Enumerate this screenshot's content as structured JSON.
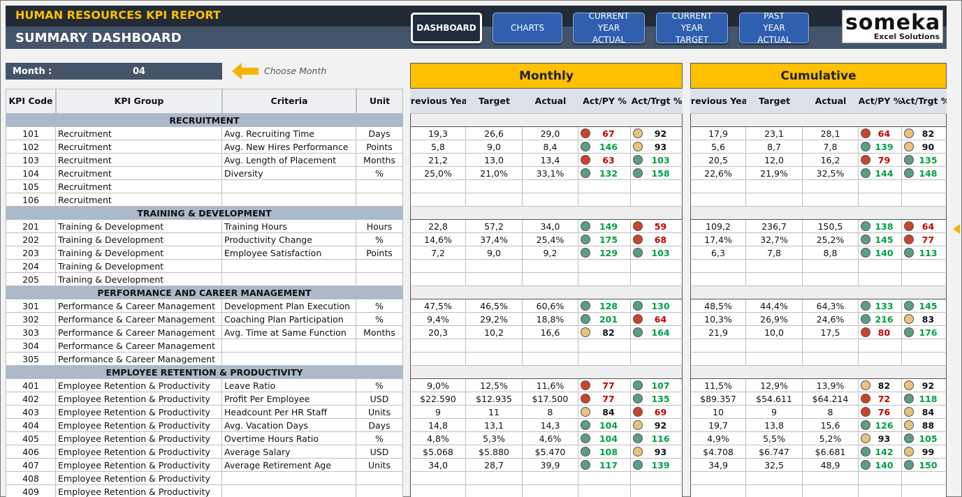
{
  "header": {
    "title": "HUMAN RESOURCES KPI REPORT",
    "subtitle": "SUMMARY DASHBOARD"
  },
  "nav": [
    "DASHBOARD",
    "CHARTS",
    "CURRENT YEAR ACTUAL",
    "CURRENT YEAR TARGET",
    "PAST YEAR ACTUAL"
  ],
  "logo": {
    "name": "someka",
    "tagline": "Excel Solutions"
  },
  "month": {
    "label": "Month :",
    "value": "04",
    "hint": "Choose Month"
  },
  "table": {
    "columns": [
      "KPI Code",
      "KPI Group",
      "Criteria",
      "Unit"
    ],
    "monthly": {
      "title": "Monthly",
      "columns": [
        "Previous Year",
        "Target",
        "Actual",
        "Act/PY %",
        "Act/Trgt %"
      ]
    },
    "cumulative": {
      "title": "Cumulative",
      "columns": [
        "Previous Year",
        "Target",
        "Actual",
        "Act/PY %",
        "Act/Trgt %"
      ]
    },
    "sections": [
      {
        "title": "RECRUITMENT",
        "rows": [
          {
            "code": "101",
            "group": "Recruitment",
            "criteria": "Avg. Recruiting Time",
            "unit": "Days",
            "monthly": [
              "19,3",
              "26,6",
              "29,0",
              {
                "value": "67",
                "status": "red"
              },
              {
                "value": "92",
                "status": "amber"
              }
            ],
            "cumulative": [
              "17,9",
              "23,1",
              "28,1",
              {
                "value": "64",
                "status": "red"
              },
              {
                "value": "82",
                "status": "amber"
              }
            ]
          },
          {
            "code": "102",
            "group": "Recruitment",
            "criteria": "Avg. New Hires Performance",
            "unit": "Points",
            "monthly": [
              "5,8",
              "9,0",
              "8,4",
              {
                "value": "146",
                "status": "green"
              },
              {
                "value": "93",
                "status": "amber"
              }
            ],
            "cumulative": [
              "5,6",
              "8,7",
              "7,8",
              {
                "value": "139",
                "status": "green"
              },
              {
                "value": "90",
                "status": "amber"
              }
            ]
          },
          {
            "code": "103",
            "group": "Recruitment",
            "criteria": "Avg. Length of Placement",
            "unit": "Months",
            "monthly": [
              "21,2",
              "13,0",
              "13,4",
              {
                "value": "63",
                "status": "red"
              },
              {
                "value": "103",
                "status": "green"
              }
            ],
            "cumulative": [
              "20,5",
              "12,0",
              "16,2",
              {
                "value": "79",
                "status": "red"
              },
              {
                "value": "135",
                "status": "green"
              }
            ]
          },
          {
            "code": "104",
            "group": "Recruitment",
            "criteria": "Diversity",
            "unit": "%",
            "monthly": [
              "25,0%",
              "21,0%",
              "33,1%",
              {
                "value": "132",
                "status": "green"
              },
              {
                "value": "158",
                "status": "green"
              }
            ],
            "cumulative": [
              "22,6%",
              "21,9%",
              "32,5%",
              {
                "value": "144",
                "status": "green"
              },
              {
                "value": "148",
                "status": "green"
              }
            ]
          },
          {
            "code": "105",
            "group": "Recruitment"
          },
          {
            "code": "106",
            "group": "Recruitment"
          }
        ]
      },
      {
        "title": "TRAINING & DEVELOPMENT",
        "rows": [
          {
            "code": "201",
            "group": "Training & Development",
            "criteria": "Training Hours",
            "unit": "Hours",
            "monthly": [
              "22,8",
              "57,2",
              "34,0",
              {
                "value": "149",
                "status": "green"
              },
              {
                "value": "59",
                "status": "red"
              }
            ],
            "cumulative": [
              "109,2",
              "236,7",
              "150,5",
              {
                "value": "138",
                "status": "green"
              },
              {
                "value": "64",
                "status": "red"
              }
            ]
          },
          {
            "code": "202",
            "group": "Training & Development",
            "criteria": "Productivity Change",
            "unit": "%",
            "monthly": [
              "14,6%",
              "37,4%",
              "25,4%",
              {
                "value": "175",
                "status": "green"
              },
              {
                "value": "68",
                "status": "red"
              }
            ],
            "cumulative": [
              "17,4%",
              "32,7%",
              "25,2%",
              {
                "value": "145",
                "status": "green"
              },
              {
                "value": "77",
                "status": "red"
              }
            ]
          },
          {
            "code": "203",
            "group": "Training & Development",
            "criteria": "Employee Satisfaction",
            "unit": "Points",
            "monthly": [
              "7,2",
              "9,0",
              "9,2",
              {
                "value": "129",
                "status": "green"
              },
              {
                "value": "103",
                "status": "green"
              }
            ],
            "cumulative": [
              "6,3",
              "7,8",
              "8,8",
              {
                "value": "140",
                "status": "green"
              },
              {
                "value": "113",
                "status": "green"
              }
            ]
          },
          {
            "code": "204",
            "group": "Training & Development"
          },
          {
            "code": "205",
            "group": "Training & Development"
          }
        ]
      },
      {
        "title": "PERFORMANCE AND CAREER MANAGEMENT",
        "rows": [
          {
            "code": "301",
            "group": "Performance & Career Management",
            "criteria": "Development Plan Execution",
            "unit": "%",
            "monthly": [
              "47,5%",
              "46,5%",
              "60,6%",
              {
                "value": "128",
                "status": "green"
              },
              {
                "value": "130",
                "status": "green"
              }
            ],
            "cumulative": [
              "48,5%",
              "44,4%",
              "64,3%",
              {
                "value": "133",
                "status": "green"
              },
              {
                "value": "145",
                "status": "green"
              }
            ]
          },
          {
            "code": "302",
            "group": "Performance & Career Management",
            "criteria": "Coaching Plan Participation",
            "unit": "%",
            "monthly": [
              "9,4%",
              "29,2%",
              "18,8%",
              {
                "value": "201",
                "status": "green"
              },
              {
                "value": "64",
                "status": "red"
              }
            ],
            "cumulative": [
              "10,3%",
              "26,9%",
              "24,6%",
              {
                "value": "216",
                "status": "green"
              },
              {
                "value": "83",
                "status": "amber"
              }
            ]
          },
          {
            "code": "303",
            "group": "Performance & Career Management",
            "criteria": "Avg. Time at Same Function",
            "unit": "Months",
            "monthly": [
              "20,3",
              "10,2",
              "16,6",
              {
                "value": "82",
                "status": "amber"
              },
              {
                "value": "164",
                "status": "green"
              }
            ],
            "cumulative": [
              "21,9",
              "10,0",
              "17,5",
              {
                "value": "80",
                "status": "red"
              },
              {
                "value": "176",
                "status": "green"
              }
            ]
          },
          {
            "code": "304",
            "group": "Performance & Career Management"
          },
          {
            "code": "305",
            "group": "Performance & Career Management"
          }
        ]
      },
      {
        "title": "EMPLOYEE RETENTION & PRODUCTIVITY",
        "rows": [
          {
            "code": "401",
            "group": "Employee Retention & Productivity",
            "criteria": "Leave Ratio",
            "unit": "%",
            "monthly": [
              "9,0%",
              "12,5%",
              "11,6%",
              {
                "value": "77",
                "status": "red"
              },
              {
                "value": "107",
                "status": "green"
              }
            ],
            "cumulative": [
              "11,5%",
              "12,9%",
              "13,9%",
              {
                "value": "82",
                "status": "amber"
              },
              {
                "value": "92",
                "status": "amber"
              }
            ]
          },
          {
            "code": "402",
            "group": "Employee Retention & Productivity",
            "criteria": "Profit Per Employee",
            "unit": "USD",
            "monthly": [
              "$22.590",
              "$12.935",
              "$17.500",
              {
                "value": "77",
                "status": "red"
              },
              {
                "value": "135",
                "status": "green"
              }
            ],
            "cumulative": [
              "$89.357",
              "$54.611",
              "$64.214",
              {
                "value": "72",
                "status": "red"
              },
              {
                "value": "118",
                "status": "green"
              }
            ]
          },
          {
            "code": "403",
            "group": "Employee Retention & Productivity",
            "criteria": "Headcount Per HR Staff",
            "unit": "Units",
            "monthly": [
              "9",
              "11",
              "8",
              {
                "value": "84",
                "status": "amber"
              },
              {
                "value": "69",
                "status": "red"
              }
            ],
            "cumulative": [
              "10",
              "9",
              "8",
              {
                "value": "76",
                "status": "red"
              },
              {
                "value": "84",
                "status": "amber"
              }
            ]
          },
          {
            "code": "404",
            "group": "Employee Retention & Productivity",
            "criteria": "Avg. Vacation Days",
            "unit": "Days",
            "monthly": [
              "14,8",
              "13,1",
              "14,3",
              {
                "value": "104",
                "status": "green"
              },
              {
                "value": "92",
                "status": "amber"
              }
            ],
            "cumulative": [
              "19,7",
              "13,8",
              "15,6",
              {
                "value": "126",
                "status": "green"
              },
              {
                "value": "88",
                "status": "amber"
              }
            ]
          },
          {
            "code": "405",
            "group": "Employee Retention & Productivity",
            "criteria": "Overtime Hours Ratio",
            "unit": "%",
            "monthly": [
              "4,8%",
              "5,3%",
              "4,6%",
              {
                "value": "104",
                "status": "green"
              },
              {
                "value": "116",
                "status": "green"
              }
            ],
            "cumulative": [
              "4,9%",
              "5,5%",
              "5,2%",
              {
                "value": "93",
                "status": "amber"
              },
              {
                "value": "105",
                "status": "green"
              }
            ]
          },
          {
            "code": "406",
            "group": "Employee Retention & Productivity",
            "criteria": "Average Salary",
            "unit": "USD",
            "monthly": [
              "$5.068",
              "$5.880",
              "$5.470",
              {
                "value": "108",
                "status": "green"
              },
              {
                "value": "93",
                "status": "amber"
              }
            ],
            "cumulative": [
              "$4.708",
              "$6.747",
              "$6.681",
              {
                "value": "142",
                "status": "green"
              },
              {
                "value": "99",
                "status": "amber"
              }
            ]
          },
          {
            "code": "407",
            "group": "Employee Retention & Productivity",
            "criteria": "Average Retirement Age",
            "unit": "Units",
            "monthly": [
              "34,0",
              "28,7",
              "39,9",
              {
                "value": "117",
                "status": "green"
              },
              {
                "value": "139",
                "status": "green"
              }
            ],
            "cumulative": [
              "34,9",
              "32,5",
              "48,9",
              {
                "value": "140",
                "status": "green"
              },
              {
                "value": "150",
                "status": "green"
              }
            ]
          },
          {
            "code": "408",
            "group": "Employee Retention & Productivity"
          },
          {
            "code": "409",
            "group": "Employee Retention & Productivity"
          }
        ]
      }
    ]
  }
}
